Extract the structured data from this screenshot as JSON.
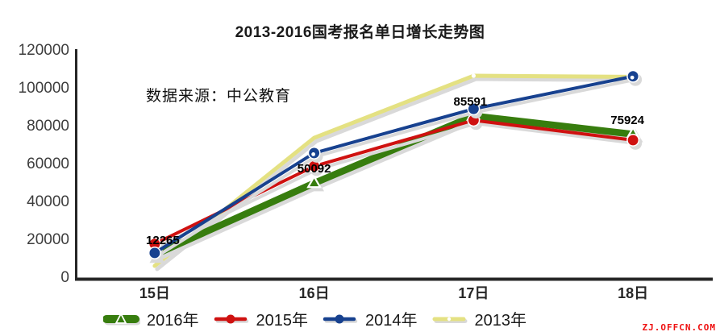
{
  "title": "2013-2016国考报名单日增长走势图",
  "source_note": "数据来源：中公教育",
  "watermark": "ZJ.OFFCN.COM",
  "colors": {
    "green": "#377d0e",
    "red": "#cf1110",
    "blue": "#17418f",
    "yellow": "#e4e182",
    "shadow": "#d9d9d9",
    "axis": "#262626",
    "tick_text": "#3d3d3d",
    "label_text": "#000000",
    "watermark_red": "#ee1111"
  },
  "chart_data": {
    "type": "line",
    "title": "2013-2016国考报名单日增长走势图",
    "categories": [
      "15日",
      "16日",
      "17日",
      "18日"
    ],
    "xlabel": "",
    "ylabel": "",
    "ylim": [
      0,
      120000
    ],
    "yticks": [
      0,
      20000,
      40000,
      60000,
      80000,
      100000,
      120000
    ],
    "grid": false,
    "legend_position": "bottom",
    "series": [
      {
        "name": "2016年",
        "color": "#377d0e",
        "line_width": 8.5,
        "marker": "triangle",
        "z": 1,
        "values": [
          12265,
          50092,
          85591,
          75924
        ],
        "point_labels": [
          "12265",
          "50092",
          "85591",
          "75924"
        ]
      },
      {
        "name": "2015年",
        "color": "#cf1110",
        "line_width": 4,
        "marker": "circle",
        "z": 2,
        "values": [
          18000,
          59000,
          83300,
          72800
        ]
      },
      {
        "name": "2014年",
        "color": "#17418f",
        "line_width": 4,
        "marker": "circle",
        "inner_dot_points": [
          1,
          3
        ],
        "z": 3,
        "values": [
          13200,
          66000,
          89300,
          106500
        ]
      },
      {
        "name": "2013年",
        "color": "#e4e182",
        "line_width": 5,
        "marker": "white-dot",
        "marker_points": [
          2
        ],
        "z": 0,
        "values": [
          6400,
          74000,
          106800,
          106200
        ]
      }
    ]
  }
}
